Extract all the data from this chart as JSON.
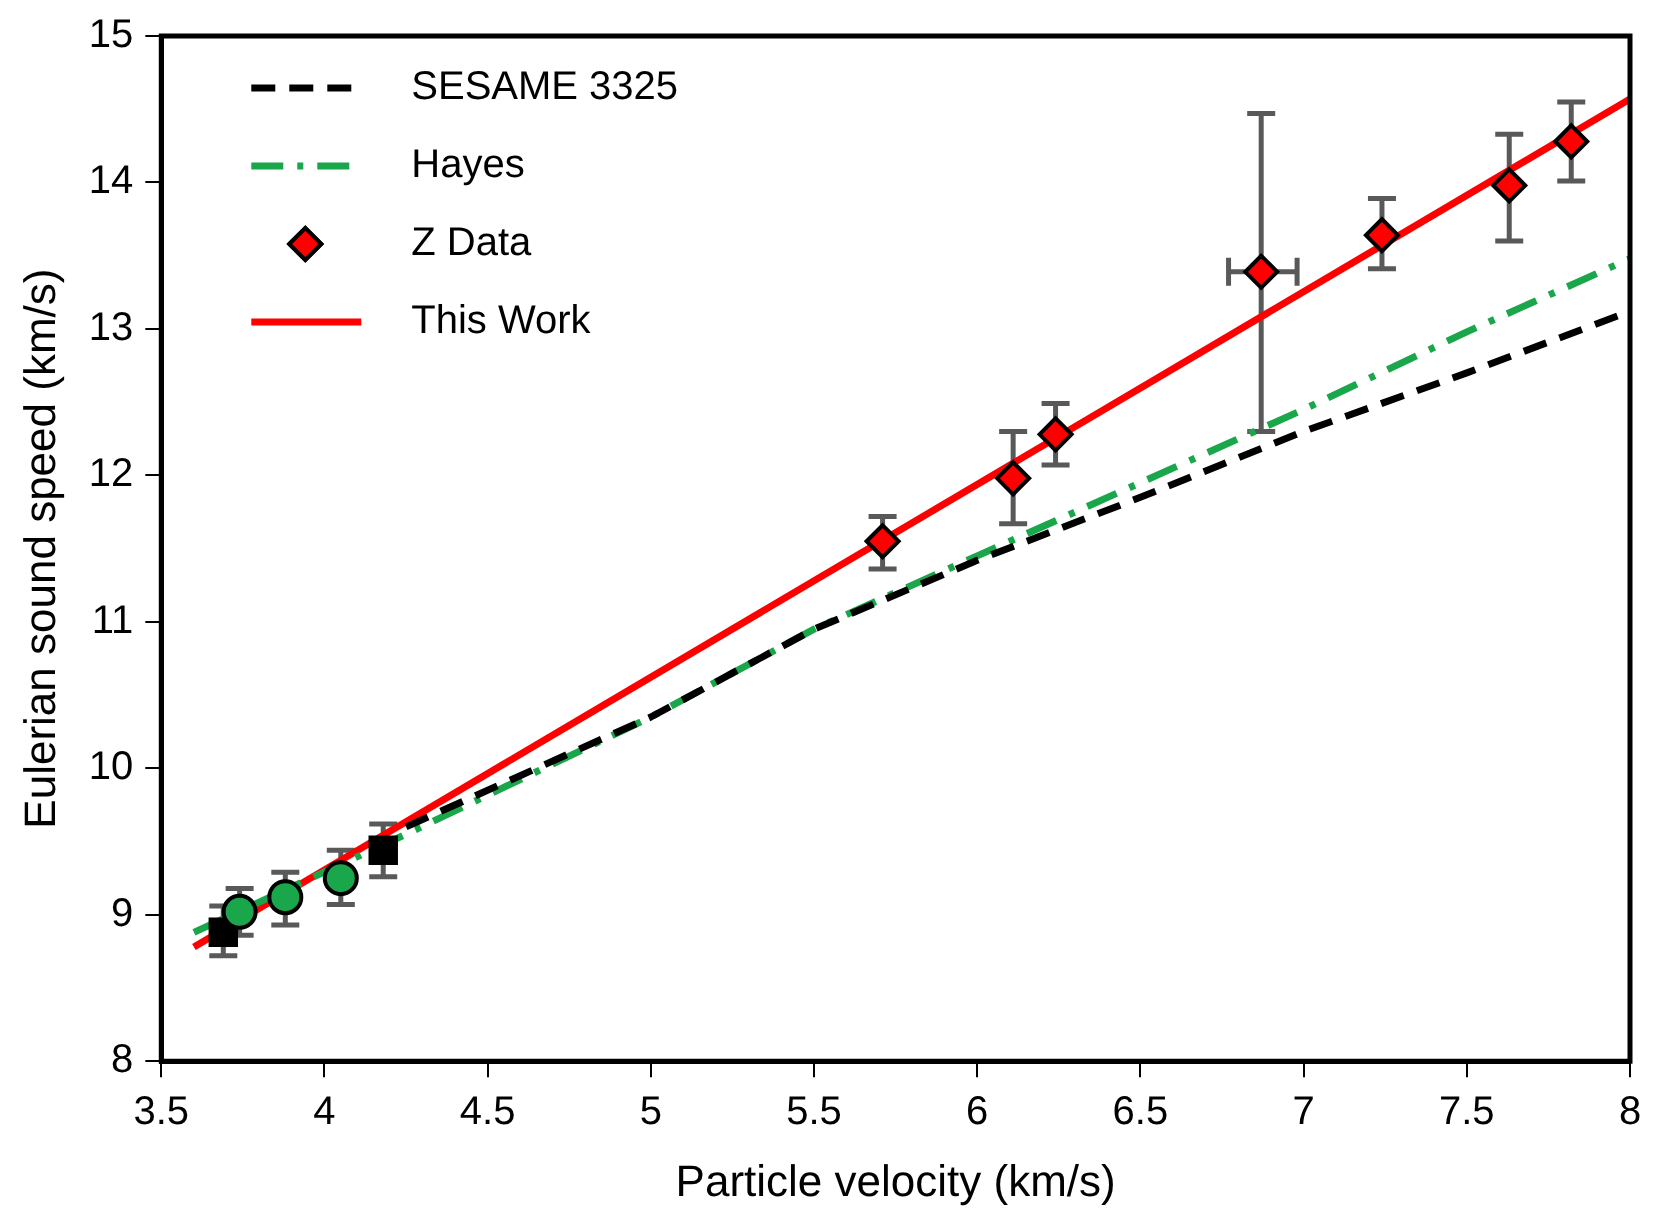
{
  "chart_data": {
    "type": "scatter",
    "xlabel": "Particle velocity (km/s)",
    "ylabel": "Eulerian sound speed (km/s)",
    "xlim": [
      3.5,
      8
    ],
    "xticks": [
      3.5,
      4,
      4.5,
      5,
      5.5,
      6,
      6.5,
      7,
      7.5,
      8
    ],
    "ylim": [
      8,
      15
    ],
    "yticks": [
      8,
      9,
      10,
      11,
      12,
      13,
      14,
      15
    ],
    "grid": false,
    "legend": "top left",
    "series": [
      {
        "name": "SESAME 3325",
        "type": "line",
        "line_style": "dashed",
        "marker": "none",
        "color": "#000000",
        "x": [
          4.25,
          5,
          5.5,
          6,
          6.5,
          7,
          7.5,
          8
        ],
        "values": [
          9.6,
          10.35,
          10.95,
          11.42,
          11.85,
          12.3,
          12.7,
          13.12
        ]
      },
      {
        "name": "Hayes",
        "type": "line",
        "line_style": "dashdot",
        "marker": "none",
        "color": "#1aa64b",
        "x": [
          3.6,
          4.25,
          5,
          5.5,
          6,
          6.5,
          7,
          7.5,
          8
        ],
        "values": [
          8.88,
          9.55,
          10.35,
          10.95,
          11.45,
          11.95,
          12.45,
          12.98,
          13.48
        ]
      },
      {
        "name": "Z Data",
        "marker": "diamond",
        "color": "#ff0000",
        "x": [
          5.71,
          6.11,
          6.24,
          6.87,
          7.24,
          7.63,
          7.82
        ],
        "values": [
          11.55,
          11.98,
          12.28,
          13.39,
          13.64,
          13.98,
          14.28
        ],
        "errors": [
          [
            11.36,
            11.72
          ],
          [
            11.67,
            12.3
          ],
          [
            12.07,
            12.49
          ],
          [
            12.3,
            14.47
          ],
          [
            13.41,
            13.89
          ],
          [
            13.6,
            14.33
          ],
          [
            14.01,
            14.55
          ]
        ],
        "xerrors": [
          null,
          null,
          null,
          [
            6.77,
            6.98
          ],
          null,
          null,
          null
        ]
      },
      {
        "marker": "circle",
        "color": "#1aa64b",
        "x": [
          3.74,
          3.88,
          4.05
        ],
        "values": [
          9.02,
          9.12,
          9.25
        ],
        "errors": [
          [
            8.86,
            9.18
          ],
          [
            8.93,
            9.29
          ],
          [
            9.07,
            9.44
          ]
        ]
      },
      {
        "marker": "square",
        "color": "#000000",
        "x": [
          3.69,
          4.18
        ],
        "values": [
          8.88,
          9.44
        ],
        "errors": [
          [
            8.72,
            9.06
          ],
          [
            9.26,
            9.62
          ]
        ]
      },
      {
        "name": "This Work",
        "type": "line",
        "line_style": "solid",
        "marker": "none",
        "color": "#ff0000",
        "x": [
          3.6,
          8
        ],
        "values": [
          8.78,
          14.57
        ]
      }
    ]
  }
}
